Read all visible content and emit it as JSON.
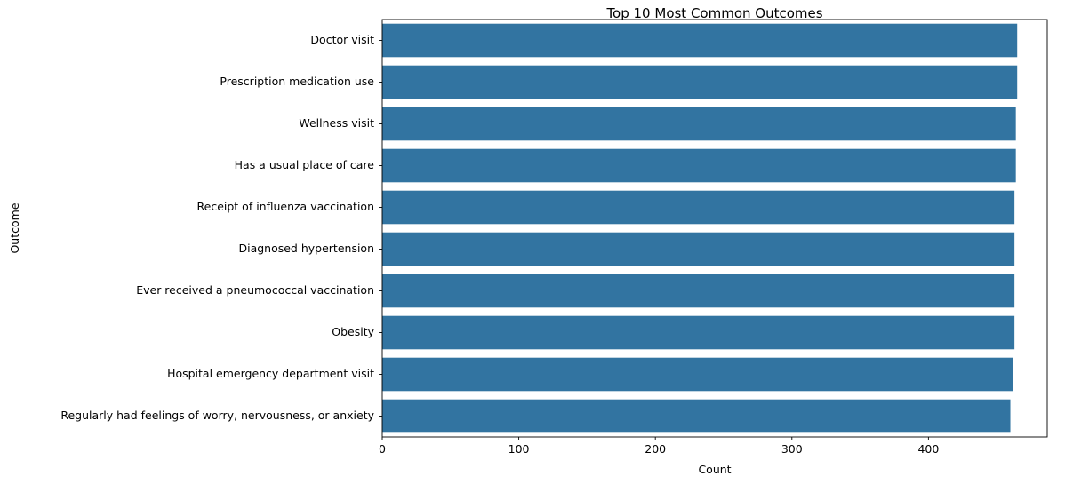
{
  "chart_data": {
    "type": "bar",
    "orientation": "horizontal",
    "title": "Top 10 Most Common Outcomes",
    "xlabel": "Count",
    "ylabel": "Outcome",
    "categories": [
      "Doctor visit",
      "Prescription medication use",
      "Wellness visit",
      "Has a usual place of care",
      "Receipt of influenza vaccination",
      "Diagnosed hypertension",
      "Ever received a pneumococcal vaccination",
      "Obesity",
      "Hospital emergency department visit",
      "Regularly had feelings of worry, nervousness, or anxiety"
    ],
    "values": [
      465,
      465,
      464,
      464,
      463,
      463,
      463,
      463,
      462,
      460
    ],
    "xlim": [
      0,
      487
    ],
    "xticks": [
      "0",
      "100",
      "200",
      "300",
      "400"
    ],
    "bar_color": "#3274a1",
    "grid": false,
    "legend": "none"
  }
}
